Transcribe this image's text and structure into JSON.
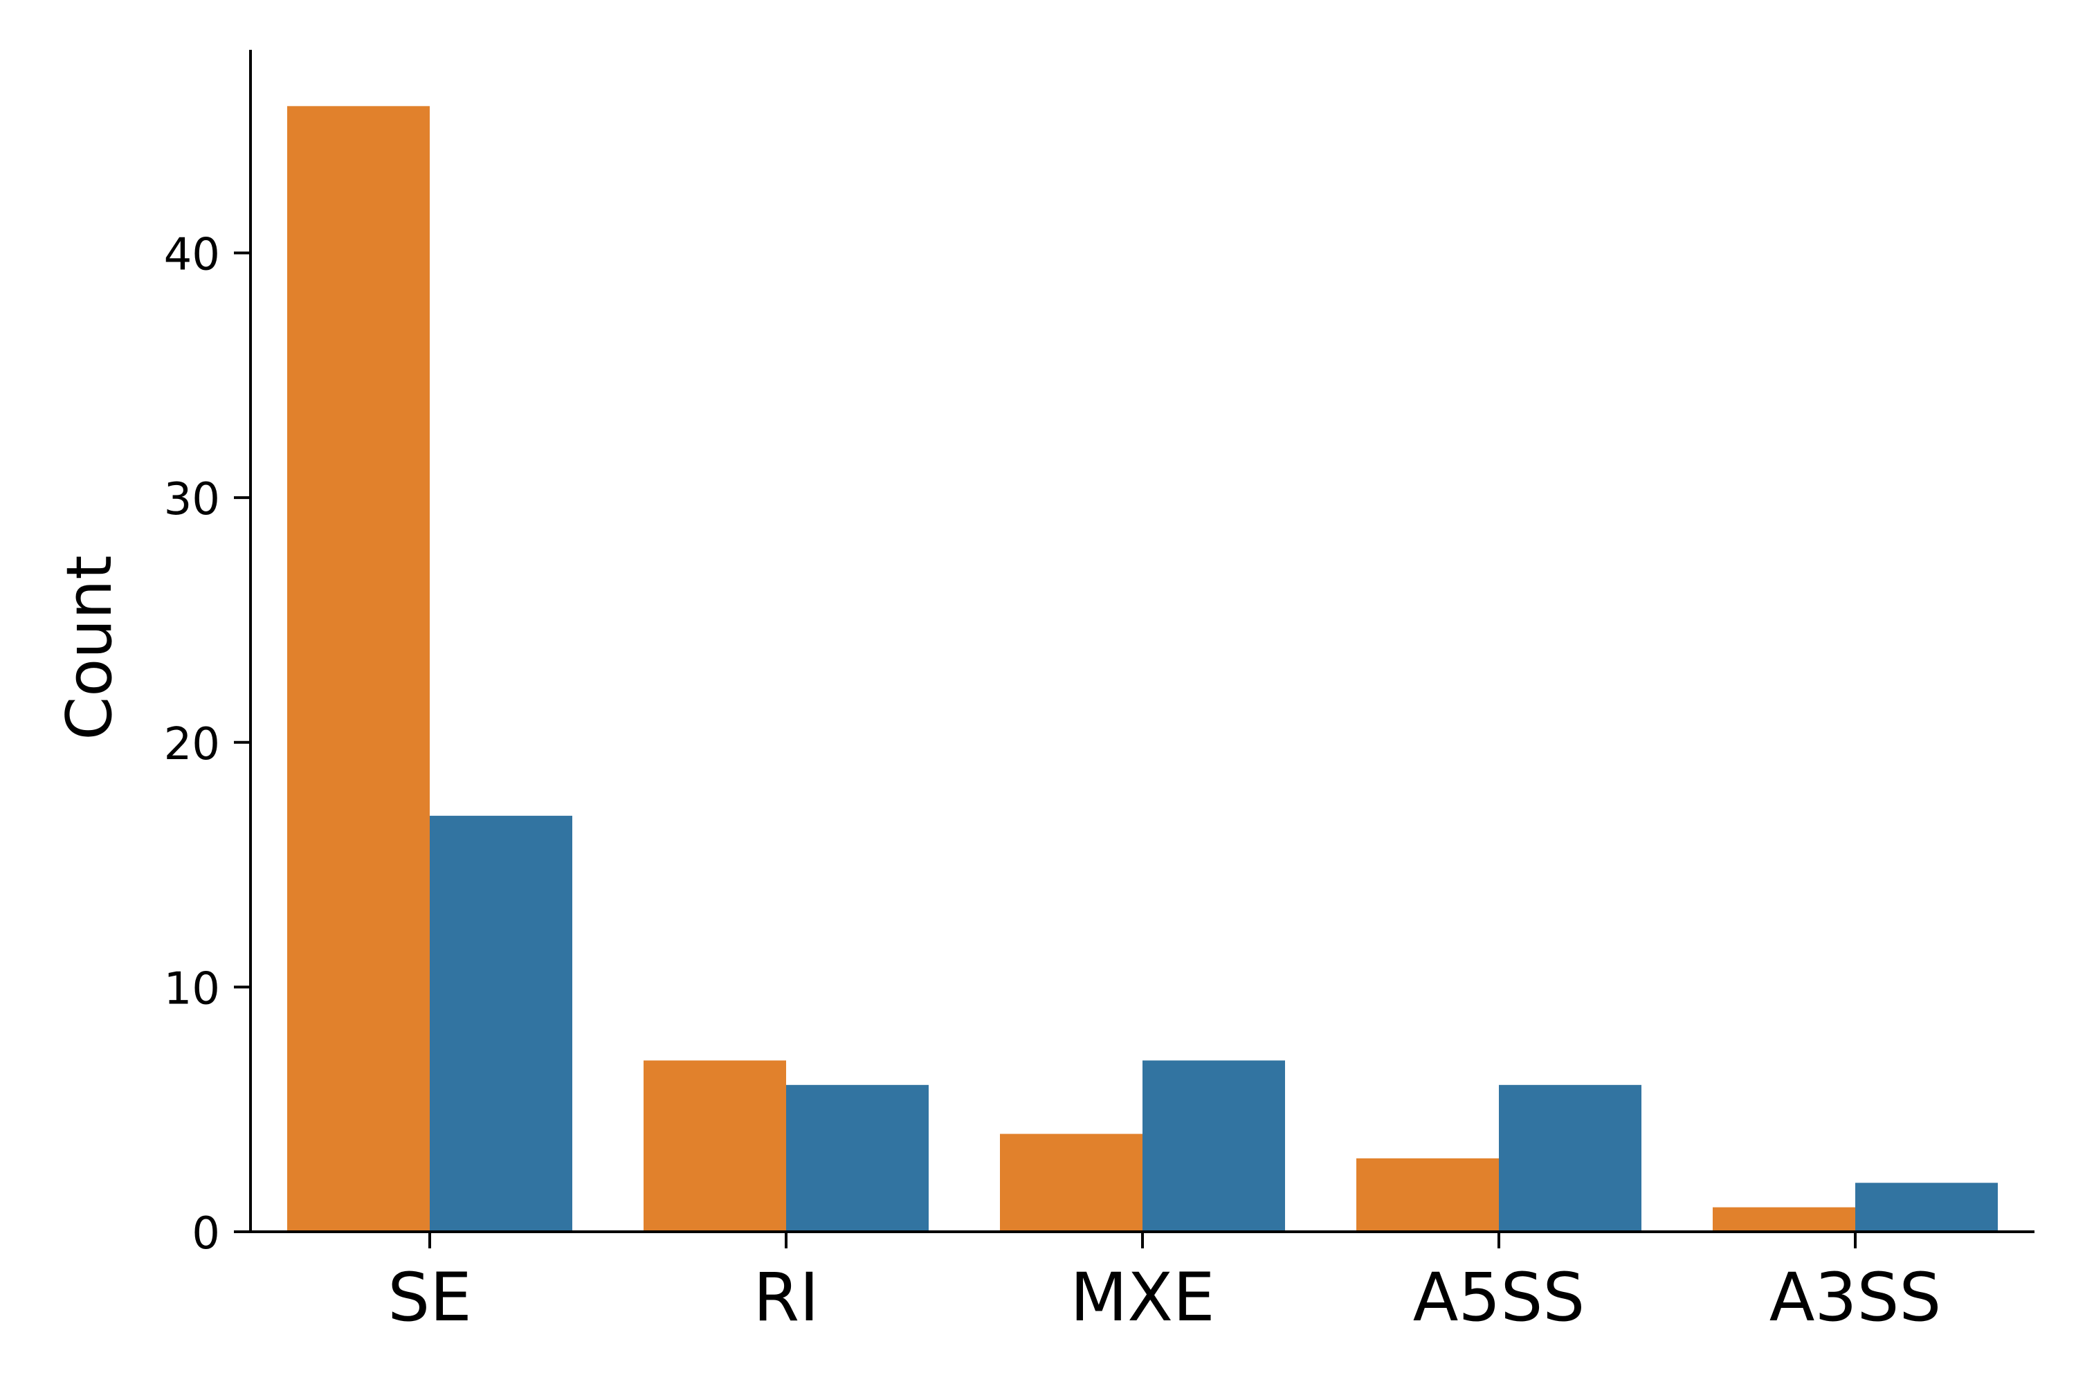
{
  "chart_data": {
    "type": "bar",
    "title": "",
    "xlabel": "",
    "ylabel": "Count",
    "categories": [
      "SE",
      "RI",
      "MXE",
      "A5SS",
      "A3SS"
    ],
    "series": [
      {
        "values": [
          46,
          7,
          4,
          3,
          1
        ],
        "color": "#e1812c"
      },
      {
        "values": [
          17,
          6,
          7,
          6,
          2
        ],
        "color": "#3274a1"
      }
    ],
    "yticks": [
      0,
      10,
      20,
      30,
      40
    ],
    "ylim": [
      0,
      48.3
    ],
    "grid": false,
    "legend": "none"
  }
}
